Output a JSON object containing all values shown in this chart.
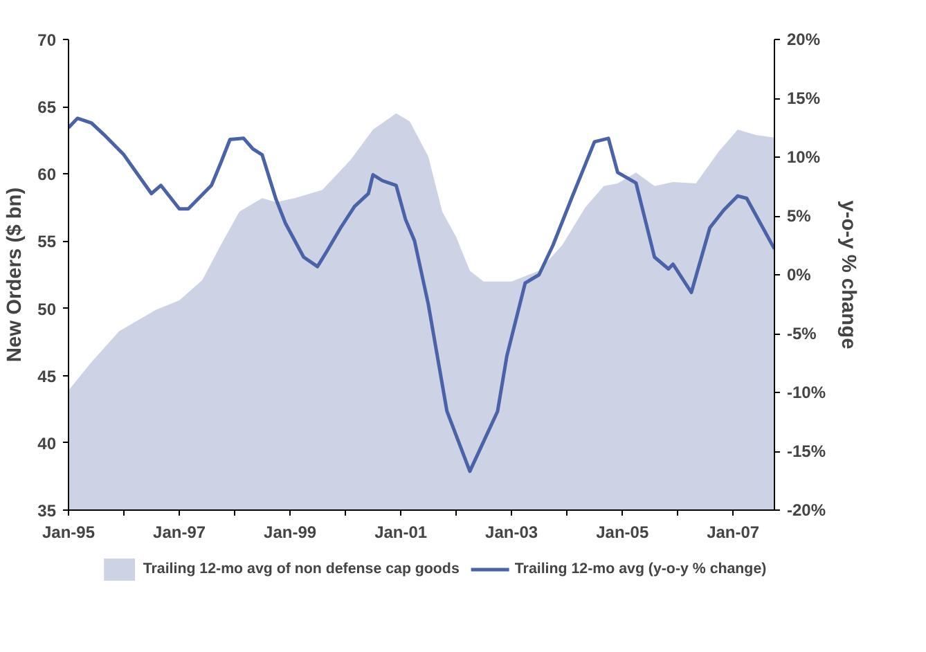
{
  "chart_data": {
    "type": "area",
    "ylabel": "New Orders ($ bn)",
    "y2label": "y-o-y % change",
    "xlim": [
      "1995-01",
      "2007-10"
    ],
    "ylim": [
      35,
      70
    ],
    "y2lim": [
      -20,
      20
    ],
    "xticks": [
      {
        "value": "1995-01",
        "label": "Jan-95"
      },
      {
        "value": "1996-01",
        "label": null
      },
      {
        "value": "1997-01",
        "label": "Jan-97"
      },
      {
        "value": "1998-01",
        "label": null
      },
      {
        "value": "1999-01",
        "label": "Jan-99"
      },
      {
        "value": "2000-01",
        "label": null
      },
      {
        "value": "2001-01",
        "label": "Jan-01"
      },
      {
        "value": "2002-01",
        "label": null
      },
      {
        "value": "2003-01",
        "label": "Jan-03"
      },
      {
        "value": "2004-01",
        "label": null
      },
      {
        "value": "2005-01",
        "label": "Jan-05"
      },
      {
        "value": "2006-01",
        "label": null
      },
      {
        "value": "2007-01",
        "label": "Jan-07"
      }
    ],
    "yticks": [
      35,
      40,
      45,
      50,
      55,
      60,
      65,
      70
    ],
    "y2ticks": [
      {
        "value": -20,
        "label": "-20%"
      },
      {
        "value": -15,
        "label": "-15%"
      },
      {
        "value": -10,
        "label": "-10%"
      },
      {
        "value": -5,
        "label": "-5%"
      },
      {
        "value": 0,
        "label": "0%"
      },
      {
        "value": 5,
        "label": "5%"
      },
      {
        "value": 10,
        "label": "10%"
      },
      {
        "value": 15,
        "label": "15%"
      },
      {
        "value": 20,
        "label": "20%"
      }
    ],
    "grid": false,
    "legend": "bottom",
    "series": [
      {
        "name": "Trailing 12-mo avg of non defense cap goods",
        "color": "#cdd3e4",
        "x": [
          "1995-01",
          "1995-06",
          "1995-12",
          "1996-08",
          "1997-01",
          "1997-06",
          "1997-10",
          "1998-02",
          "1998-07",
          "1998-10",
          "1999-02",
          "1999-08",
          "2000-02",
          "2000-07",
          "2000-12",
          "2001-03",
          "2001-07",
          "2001-10",
          "2002-01",
          "2002-04",
          "2002-07",
          "2003-01",
          "2003-07",
          "2003-12",
          "2004-05",
          "2004-09",
          "2004-12",
          "2005-04",
          "2005-08",
          "2005-12",
          "2006-05",
          "2006-10",
          "2007-02",
          "2007-06",
          "2007-10"
        ],
        "values": [
          43.9,
          46.0,
          48.3,
          49.9,
          50.6,
          52.1,
          54.7,
          57.2,
          58.2,
          57.9,
          58.2,
          58.8,
          61.0,
          63.3,
          64.5,
          63.9,
          61.3,
          57.2,
          55.3,
          52.8,
          52.0,
          52.0,
          52.8,
          54.7,
          57.5,
          59.1,
          59.3,
          60.1,
          59.1,
          59.4,
          59.3,
          61.7,
          63.3,
          62.9,
          62.7
        ]
      },
      {
        "name": "Trailing 12-mo avg (y-o-y % change)",
        "type": "line",
        "axis": "y2",
        "color": "#4a63a8",
        "x": [
          "1995-01",
          "1995-03",
          "1995-06",
          "1995-09",
          "1996-01",
          "1996-03",
          "1996-07",
          "1996-09",
          "1997-01",
          "1997-03",
          "1997-08",
          "1997-10",
          "1997-12",
          "1998-03",
          "1998-05",
          "1998-07",
          "1998-10",
          "1998-12",
          "1999-04",
          "1999-07",
          "1999-09",
          "1999-12",
          "2000-03",
          "2000-06",
          "2000-07",
          "2000-09",
          "2000-12",
          "2001-02",
          "2001-04",
          "2001-07",
          "2001-11",
          "2002-04",
          "2002-10",
          "2002-12",
          "2003-04",
          "2003-07",
          "2003-10",
          "2004-02",
          "2004-07",
          "2004-10",
          "2004-12",
          "2005-04",
          "2005-08",
          "2005-11",
          "2005-12",
          "2006-04",
          "2006-08",
          "2006-11",
          "2007-02",
          "2007-04",
          "2007-10"
        ],
        "values": [
          12.5,
          13.3,
          12.9,
          11.8,
          10.2,
          9.1,
          6.9,
          7.6,
          5.6,
          5.6,
          7.6,
          9.5,
          11.5,
          11.6,
          10.7,
          10.2,
          6.4,
          4.4,
          1.5,
          0.7,
          2.0,
          4.0,
          5.8,
          6.9,
          8.5,
          8.0,
          7.6,
          4.7,
          2.9,
          -2.5,
          -11.6,
          -16.7,
          -11.6,
          -6.9,
          -0.7,
          0.0,
          2.5,
          6.5,
          11.3,
          11.6,
          8.7,
          7.8,
          1.5,
          0.5,
          0.9,
          -1.5,
          4.0,
          5.5,
          6.7,
          6.5,
          2.2
        ]
      }
    ]
  }
}
